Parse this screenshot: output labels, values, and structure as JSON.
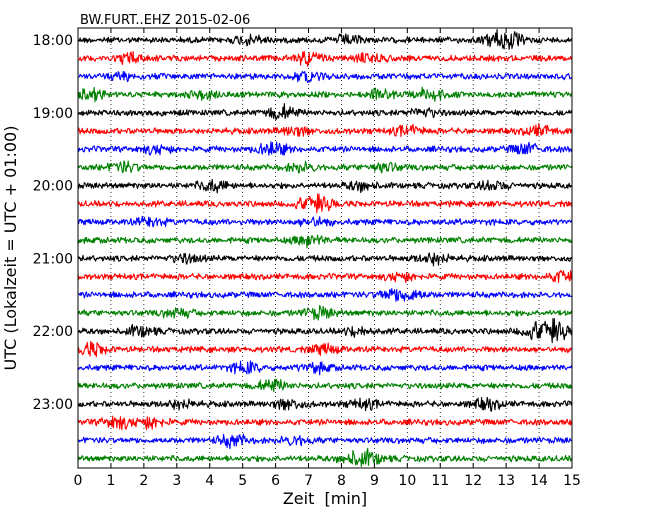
{
  "chart_data": {
    "type": "line",
    "title": "BW.FURT..EHZ 2015-02-06",
    "xlabel": "Zeit  [min]",
    "ylabel": "UTC (Lokalzeit = UTC + 01:00)",
    "xlim": [
      0,
      15
    ],
    "x_ticks": [
      "0",
      "1",
      "2",
      "3",
      "4",
      "5",
      "6",
      "7",
      "8",
      "9",
      "10",
      "11",
      "12",
      "13",
      "14",
      "15"
    ],
    "y_ticks": [
      "18:00",
      "19:00",
      "20:00",
      "21:00",
      "22:00",
      "23:00"
    ],
    "grid": true,
    "colors": [
      "#000000",
      "#ff0000",
      "#0000ff",
      "#008000"
    ],
    "traces": [
      {
        "start": "18:00",
        "color": "#000000",
        "events": [
          [
            5.2,
            1.5
          ],
          [
            8.2,
            1.4
          ],
          [
            12.8,
            2.2
          ],
          [
            13.1,
            1.5
          ]
        ]
      },
      {
        "start": "18:15",
        "color": "#ff0000",
        "events": [
          [
            1.6,
            1.5
          ],
          [
            7.0,
            1.8
          ],
          [
            8.9,
            1.3
          ]
        ]
      },
      {
        "start": "18:30",
        "color": "#0000ff",
        "events": [
          [
            1.4,
            1.2
          ],
          [
            7.0,
            1.3
          ]
        ]
      },
      {
        "start": "18:45",
        "color": "#008000",
        "events": [
          [
            0.4,
            1.5
          ],
          [
            3.8,
            1.3
          ],
          [
            9.2,
            1.3
          ],
          [
            10.7,
            1.8
          ]
        ]
      },
      {
        "start": "19:00",
        "color": "#000000",
        "events": [
          [
            6.2,
            2.0
          ],
          [
            10.5,
            1.2
          ]
        ]
      },
      {
        "start": "19:15",
        "color": "#ff0000",
        "events": [
          [
            6.6,
            1.3
          ],
          [
            10.0,
            1.4
          ],
          [
            14.0,
            1.5
          ]
        ]
      },
      {
        "start": "19:30",
        "color": "#0000ff",
        "events": [
          [
            2.4,
            1.3
          ],
          [
            5.9,
            2.0
          ],
          [
            13.6,
            1.5
          ]
        ]
      },
      {
        "start": "19:45",
        "color": "#008000",
        "events": [
          [
            1.4,
            1.4
          ],
          [
            6.8,
            1.2
          ],
          [
            9.3,
            1.3
          ]
        ]
      },
      {
        "start": "20:00",
        "color": "#000000",
        "events": [
          [
            4.1,
            1.7
          ],
          [
            8.6,
            1.3
          ],
          [
            12.6,
            1.3
          ]
        ]
      },
      {
        "start": "20:15",
        "color": "#ff0000",
        "events": [
          [
            7.4,
            1.8
          ],
          [
            6.9,
            1.4
          ]
        ]
      },
      {
        "start": "20:30",
        "color": "#0000ff",
        "events": [
          [
            2.2,
            1.2
          ],
          [
            7.2,
            1.3
          ]
        ]
      },
      {
        "start": "20:45",
        "color": "#008000",
        "events": [
          [
            7.0,
            1.7
          ]
        ]
      },
      {
        "start": "21:00",
        "color": "#000000",
        "events": [
          [
            3.3,
            1.2
          ],
          [
            10.8,
            1.8
          ]
        ]
      },
      {
        "start": "21:15",
        "color": "#ff0000",
        "events": [
          [
            9.8,
            1.3
          ],
          [
            14.7,
            1.5
          ]
        ]
      },
      {
        "start": "21:30",
        "color": "#0000ff",
        "events": [
          [
            9.5,
            1.4
          ],
          [
            10.1,
            1.5
          ]
        ]
      },
      {
        "start": "21:45",
        "color": "#008000",
        "events": [
          [
            3.0,
            1.2
          ],
          [
            7.3,
            1.6
          ]
        ]
      },
      {
        "start": "22:00",
        "color": "#000000",
        "events": [
          [
            1.9,
            1.5
          ],
          [
            8.5,
            1.2
          ],
          [
            13.9,
            2.5
          ],
          [
            14.5,
            2.8
          ]
        ]
      },
      {
        "start": "22:15",
        "color": "#ff0000",
        "events": [
          [
            0.4,
            2.0
          ],
          [
            7.5,
            1.3
          ]
        ]
      },
      {
        "start": "22:30",
        "color": "#0000ff",
        "events": [
          [
            5.1,
            1.6
          ],
          [
            7.2,
            1.3
          ]
        ]
      },
      {
        "start": "22:45",
        "color": "#008000",
        "events": [
          [
            5.9,
            1.7
          ]
        ]
      },
      {
        "start": "23:00",
        "color": "#000000",
        "events": [
          [
            3.1,
            1.3
          ],
          [
            6.4,
            1.5
          ],
          [
            8.7,
            1.3
          ],
          [
            12.4,
            1.5
          ]
        ]
      },
      {
        "start": "23:15",
        "color": "#ff0000",
        "events": [
          [
            1.2,
            1.8
          ],
          [
            2.2,
            1.8
          ]
        ]
      },
      {
        "start": "23:30",
        "color": "#0000ff",
        "events": [
          [
            4.7,
            1.8
          ],
          [
            6.6,
            1.2
          ]
        ]
      },
      {
        "start": "23:45",
        "color": "#008000",
        "events": [
          [
            8.4,
            1.7
          ],
          [
            8.9,
            1.5
          ]
        ]
      }
    ]
  }
}
